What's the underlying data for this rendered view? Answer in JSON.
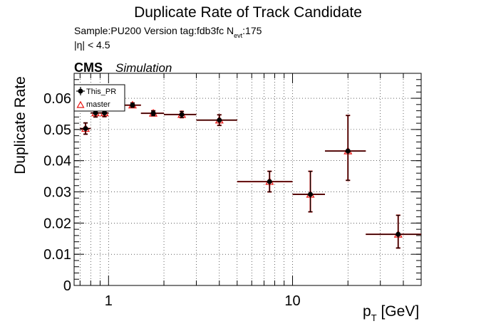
{
  "chart_data": {
    "type": "scatter",
    "title": "Duplicate Rate of Track Candidate",
    "info_line1": "Sample:PU200   Version tag:fdb3fc  N",
    "info_line1_sub": "evt",
    "info_line1_tail": ":175",
    "info_line2": "|η| < 4.5",
    "cms_label": "CMS",
    "cms_sublabel": "Simulation",
    "ylabel": "Duplicate Rate",
    "xlabel_main": "p",
    "xlabel_sub": "T",
    "xlabel_tail": " [GeV]",
    "xscale": "log",
    "xlim": [
      0.65,
      50
    ],
    "ylim": [
      0,
      0.068
    ],
    "yticks": [
      0,
      0.01,
      0.02,
      0.03,
      0.04,
      0.05,
      0.06
    ],
    "ytick_labels": [
      "0",
      "0.01",
      "0.02",
      "0.03",
      "0.04",
      "0.05",
      "0.06"
    ],
    "xticks": [
      1,
      10
    ],
    "xtick_labels": [
      "1",
      "10"
    ],
    "grid": true,
    "legend_position": "top-left",
    "series": [
      {
        "name": "This_PR",
        "color": "#000000",
        "marker": "circle",
        "points": [
          {
            "x": 0.75,
            "xlo": 0.7,
            "xhi": 0.8,
            "y": 0.0503,
            "ylo": 0.0485,
            "yhi": 0.0521
          },
          {
            "x": 0.85,
            "xlo": 0.8,
            "xhi": 0.9,
            "y": 0.0553,
            "ylo": 0.054,
            "yhi": 0.0566
          },
          {
            "x": 0.95,
            "xlo": 0.9,
            "xhi": 1.0,
            "y": 0.0553,
            "ylo": 0.0541,
            "yhi": 0.0565
          },
          {
            "x": 1.35,
            "xlo": 1.2,
            "xhi": 1.5,
            "y": 0.0578,
            "ylo": 0.0571,
            "yhi": 0.0585
          },
          {
            "x": 1.75,
            "xlo": 1.5,
            "xhi": 2.0,
            "y": 0.0552,
            "ylo": 0.0544,
            "yhi": 0.056
          },
          {
            "x": 2.5,
            "xlo": 2.0,
            "xhi": 3.0,
            "y": 0.0548,
            "ylo": 0.0538,
            "yhi": 0.0558
          },
          {
            "x": 4.0,
            "xlo": 3.0,
            "xhi": 5.0,
            "y": 0.053,
            "ylo": 0.0513,
            "yhi": 0.0547
          },
          {
            "x": 7.5,
            "xlo": 5.0,
            "xhi": 10.0,
            "y": 0.0333,
            "ylo": 0.03,
            "yhi": 0.0366
          },
          {
            "x": 12.5,
            "xlo": 10.0,
            "xhi": 15.0,
            "y": 0.0292,
            "ylo": 0.0236,
            "yhi": 0.0366
          },
          {
            "x": 20.0,
            "xlo": 15.0,
            "xhi": 25.0,
            "y": 0.0431,
            "ylo": 0.0337,
            "yhi": 0.0545
          },
          {
            "x": 37.5,
            "xlo": 25.0,
            "xhi": 50.0,
            "y": 0.0164,
            "ylo": 0.012,
            "yhi": 0.0225
          }
        ]
      },
      {
        "name": "master",
        "color": "#e8120f",
        "marker": "triangle",
        "points": [
          {
            "x": 0.75,
            "xlo": 0.7,
            "xhi": 0.8,
            "y": 0.0503,
            "ylo": 0.0485,
            "yhi": 0.0521
          },
          {
            "x": 0.85,
            "xlo": 0.8,
            "xhi": 0.9,
            "y": 0.0553,
            "ylo": 0.054,
            "yhi": 0.0566
          },
          {
            "x": 0.95,
            "xlo": 0.9,
            "xhi": 1.0,
            "y": 0.0553,
            "ylo": 0.0541,
            "yhi": 0.0565
          },
          {
            "x": 1.35,
            "xlo": 1.2,
            "xhi": 1.5,
            "y": 0.0578,
            "ylo": 0.0571,
            "yhi": 0.0585
          },
          {
            "x": 1.75,
            "xlo": 1.5,
            "xhi": 2.0,
            "y": 0.0552,
            "ylo": 0.0544,
            "yhi": 0.056
          },
          {
            "x": 2.5,
            "xlo": 2.0,
            "xhi": 3.0,
            "y": 0.0548,
            "ylo": 0.0538,
            "yhi": 0.0558
          },
          {
            "x": 4.0,
            "xlo": 3.0,
            "xhi": 5.0,
            "y": 0.053,
            "ylo": 0.0513,
            "yhi": 0.0547
          },
          {
            "x": 7.5,
            "xlo": 5.0,
            "xhi": 10.0,
            "y": 0.0333,
            "ylo": 0.03,
            "yhi": 0.0366
          },
          {
            "x": 12.5,
            "xlo": 10.0,
            "xhi": 15.0,
            "y": 0.0292,
            "ylo": 0.0236,
            "yhi": 0.0366
          },
          {
            "x": 20.0,
            "xlo": 15.0,
            "xhi": 25.0,
            "y": 0.0431,
            "ylo": 0.0337,
            "yhi": 0.0545
          },
          {
            "x": 37.5,
            "xlo": 25.0,
            "xhi": 50.0,
            "y": 0.0164,
            "ylo": 0.012,
            "yhi": 0.0225
          }
        ]
      }
    ]
  }
}
